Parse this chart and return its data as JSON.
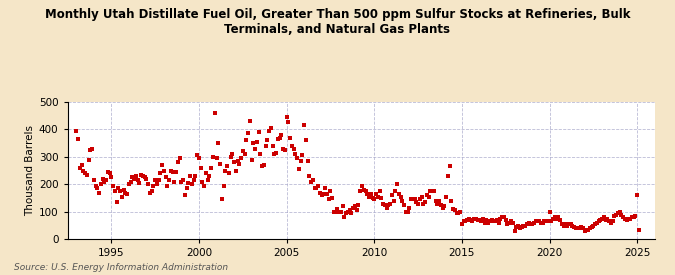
{
  "title": "Monthly Utah Distillate Fuel Oil, Greater Than 500 ppm Sulfur Stocks at Refineries, Bulk\nTerminals, and Natural Gas Plants",
  "ylabel": "Thousand Barrels",
  "source": "Source: U.S. Energy Information Administration",
  "marker_color": "#CC0000",
  "background_color": "#F5E6C8",
  "plot_bg_color": "#FFFFFF",
  "grid_color": "#AAAACC",
  "ylim": [
    0,
    500
  ],
  "yticks": [
    0,
    100,
    200,
    300,
    400,
    500
  ],
  "xlim": [
    1992.5,
    2026.0
  ],
  "xticks": [
    1995,
    2000,
    2005,
    2010,
    2015,
    2020,
    2025
  ],
  "data": [
    [
      1993.0,
      395
    ],
    [
      1993.1,
      365
    ],
    [
      1993.2,
      260
    ],
    [
      1993.3,
      270
    ],
    [
      1993.4,
      250
    ],
    [
      1993.5,
      240
    ],
    [
      1993.6,
      235
    ],
    [
      1993.7,
      290
    ],
    [
      1993.8,
      325
    ],
    [
      1993.9,
      330
    ],
    [
      1994.0,
      215
    ],
    [
      1994.1,
      195
    ],
    [
      1994.2,
      185
    ],
    [
      1994.3,
      170
    ],
    [
      1994.4,
      200
    ],
    [
      1994.5,
      220
    ],
    [
      1994.6,
      210
    ],
    [
      1994.7,
      215
    ],
    [
      1994.8,
      245
    ],
    [
      1994.9,
      240
    ],
    [
      1995.0,
      225
    ],
    [
      1995.1,
      195
    ],
    [
      1995.2,
      175
    ],
    [
      1995.3,
      135
    ],
    [
      1995.4,
      185
    ],
    [
      1995.5,
      175
    ],
    [
      1995.6,
      155
    ],
    [
      1995.7,
      180
    ],
    [
      1995.8,
      170
    ],
    [
      1995.9,
      165
    ],
    [
      1996.0,
      200
    ],
    [
      1996.1,
      210
    ],
    [
      1996.2,
      225
    ],
    [
      1996.3,
      220
    ],
    [
      1996.4,
      230
    ],
    [
      1996.5,
      215
    ],
    [
      1996.6,
      205
    ],
    [
      1996.7,
      235
    ],
    [
      1996.8,
      230
    ],
    [
      1996.9,
      225
    ],
    [
      1997.0,
      220
    ],
    [
      1997.1,
      200
    ],
    [
      1997.2,
      170
    ],
    [
      1997.3,
      175
    ],
    [
      1997.4,
      195
    ],
    [
      1997.5,
      215
    ],
    [
      1997.6,
      200
    ],
    [
      1997.7,
      215
    ],
    [
      1997.8,
      240
    ],
    [
      1997.9,
      270
    ],
    [
      1998.0,
      250
    ],
    [
      1998.1,
      225
    ],
    [
      1998.2,
      195
    ],
    [
      1998.3,
      215
    ],
    [
      1998.4,
      250
    ],
    [
      1998.5,
      245
    ],
    [
      1998.6,
      210
    ],
    [
      1998.7,
      245
    ],
    [
      1998.8,
      280
    ],
    [
      1998.9,
      295
    ],
    [
      1999.0,
      210
    ],
    [
      1999.1,
      215
    ],
    [
      1999.2,
      160
    ],
    [
      1999.3,
      185
    ],
    [
      1999.4,
      205
    ],
    [
      1999.5,
      230
    ],
    [
      1999.6,
      200
    ],
    [
      1999.7,
      215
    ],
    [
      1999.8,
      230
    ],
    [
      1999.9,
      305
    ],
    [
      2000.0,
      295
    ],
    [
      2000.1,
      260
    ],
    [
      2000.2,
      210
    ],
    [
      2000.3,
      195
    ],
    [
      2000.4,
      240
    ],
    [
      2000.5,
      215
    ],
    [
      2000.6,
      230
    ],
    [
      2000.7,
      260
    ],
    [
      2000.8,
      300
    ],
    [
      2000.9,
      460
    ],
    [
      2001.0,
      295
    ],
    [
      2001.1,
      350
    ],
    [
      2001.2,
      275
    ],
    [
      2001.3,
      145
    ],
    [
      2001.4,
      195
    ],
    [
      2001.5,
      250
    ],
    [
      2001.6,
      265
    ],
    [
      2001.7,
      240
    ],
    [
      2001.8,
      300
    ],
    [
      2001.9,
      310
    ],
    [
      2002.0,
      280
    ],
    [
      2002.1,
      250
    ],
    [
      2002.2,
      285
    ],
    [
      2002.3,
      275
    ],
    [
      2002.4,
      295
    ],
    [
      2002.5,
      320
    ],
    [
      2002.6,
      310
    ],
    [
      2002.7,
      360
    ],
    [
      2002.8,
      385
    ],
    [
      2002.9,
      430
    ],
    [
      2003.0,
      290
    ],
    [
      2003.1,
      350
    ],
    [
      2003.2,
      330
    ],
    [
      2003.3,
      355
    ],
    [
      2003.4,
      390
    ],
    [
      2003.5,
      310
    ],
    [
      2003.6,
      265
    ],
    [
      2003.7,
      270
    ],
    [
      2003.8,
      340
    ],
    [
      2003.9,
      360
    ],
    [
      2004.0,
      395
    ],
    [
      2004.1,
      405
    ],
    [
      2004.2,
      340
    ],
    [
      2004.3,
      310
    ],
    [
      2004.4,
      315
    ],
    [
      2004.5,
      365
    ],
    [
      2004.6,
      370
    ],
    [
      2004.7,
      380
    ],
    [
      2004.8,
      330
    ],
    [
      2004.9,
      325
    ],
    [
      2005.0,
      445
    ],
    [
      2005.1,
      425
    ],
    [
      2005.2,
      370
    ],
    [
      2005.3,
      340
    ],
    [
      2005.4,
      330
    ],
    [
      2005.5,
      310
    ],
    [
      2005.6,
      295
    ],
    [
      2005.7,
      255
    ],
    [
      2005.8,
      285
    ],
    [
      2005.9,
      305
    ],
    [
      2006.0,
      415
    ],
    [
      2006.1,
      360
    ],
    [
      2006.2,
      285
    ],
    [
      2006.3,
      230
    ],
    [
      2006.4,
      210
    ],
    [
      2006.5,
      215
    ],
    [
      2006.6,
      185
    ],
    [
      2006.7,
      185
    ],
    [
      2006.8,
      195
    ],
    [
      2006.9,
      170
    ],
    [
      2007.0,
      160
    ],
    [
      2007.1,
      165
    ],
    [
      2007.2,
      185
    ],
    [
      2007.3,
      165
    ],
    [
      2007.4,
      145
    ],
    [
      2007.5,
      175
    ],
    [
      2007.6,
      150
    ],
    [
      2007.7,
      100
    ],
    [
      2007.8,
      100
    ],
    [
      2007.9,
      110
    ],
    [
      2008.0,
      100
    ],
    [
      2008.1,
      100
    ],
    [
      2008.2,
      120
    ],
    [
      2008.3,
      80
    ],
    [
      2008.4,
      95
    ],
    [
      2008.5,
      100
    ],
    [
      2008.6,
      105
    ],
    [
      2008.7,
      95
    ],
    [
      2008.8,
      115
    ],
    [
      2008.9,
      120
    ],
    [
      2009.0,
      105
    ],
    [
      2009.1,
      125
    ],
    [
      2009.2,
      175
    ],
    [
      2009.3,
      195
    ],
    [
      2009.4,
      180
    ],
    [
      2009.5,
      175
    ],
    [
      2009.6,
      165
    ],
    [
      2009.7,
      155
    ],
    [
      2009.8,
      165
    ],
    [
      2009.9,
      150
    ],
    [
      2010.0,
      145
    ],
    [
      2010.1,
      165
    ],
    [
      2010.2,
      155
    ],
    [
      2010.3,
      175
    ],
    [
      2010.4,
      150
    ],
    [
      2010.5,
      130
    ],
    [
      2010.6,
      125
    ],
    [
      2010.7,
      115
    ],
    [
      2010.8,
      125
    ],
    [
      2010.9,
      130
    ],
    [
      2011.0,
      160
    ],
    [
      2011.1,
      140
    ],
    [
      2011.2,
      175
    ],
    [
      2011.3,
      200
    ],
    [
      2011.4,
      165
    ],
    [
      2011.5,
      155
    ],
    [
      2011.6,
      140
    ],
    [
      2011.7,
      125
    ],
    [
      2011.8,
      100
    ],
    [
      2011.9,
      100
    ],
    [
      2012.0,
      115
    ],
    [
      2012.1,
      145
    ],
    [
      2012.2,
      145
    ],
    [
      2012.3,
      145
    ],
    [
      2012.4,
      135
    ],
    [
      2012.5,
      130
    ],
    [
      2012.6,
      145
    ],
    [
      2012.7,
      155
    ],
    [
      2012.8,
      130
    ],
    [
      2012.9,
      135
    ],
    [
      2013.0,
      160
    ],
    [
      2013.1,
      155
    ],
    [
      2013.2,
      175
    ],
    [
      2013.3,
      175
    ],
    [
      2013.4,
      175
    ],
    [
      2013.5,
      140
    ],
    [
      2013.6,
      130
    ],
    [
      2013.7,
      140
    ],
    [
      2013.8,
      125
    ],
    [
      2013.9,
      115
    ],
    [
      2014.0,
      120
    ],
    [
      2014.1,
      155
    ],
    [
      2014.2,
      230
    ],
    [
      2014.3,
      265
    ],
    [
      2014.4,
      140
    ],
    [
      2014.5,
      110
    ],
    [
      2014.6,
      105
    ],
    [
      2014.7,
      95
    ],
    [
      2014.8,
      95
    ],
    [
      2014.9,
      100
    ],
    [
      2015.0,
      55
    ],
    [
      2015.1,
      65
    ],
    [
      2015.2,
      65
    ],
    [
      2015.3,
      70
    ],
    [
      2015.4,
      75
    ],
    [
      2015.5,
      70
    ],
    [
      2015.6,
      65
    ],
    [
      2015.7,
      75
    ],
    [
      2015.8,
      75
    ],
    [
      2015.9,
      70
    ],
    [
      2016.0,
      70
    ],
    [
      2016.1,
      65
    ],
    [
      2016.2,
      75
    ],
    [
      2016.3,
      60
    ],
    [
      2016.4,
      70
    ],
    [
      2016.5,
      60
    ],
    [
      2016.6,
      65
    ],
    [
      2016.7,
      70
    ],
    [
      2016.8,
      65
    ],
    [
      2016.9,
      65
    ],
    [
      2017.0,
      70
    ],
    [
      2017.1,
      60
    ],
    [
      2017.2,
      75
    ],
    [
      2017.3,
      80
    ],
    [
      2017.4,
      80
    ],
    [
      2017.5,
      70
    ],
    [
      2017.6,
      55
    ],
    [
      2017.7,
      60
    ],
    [
      2017.8,
      65
    ],
    [
      2017.9,
      60
    ],
    [
      2018.0,
      30
    ],
    [
      2018.1,
      45
    ],
    [
      2018.2,
      50
    ],
    [
      2018.3,
      40
    ],
    [
      2018.4,
      45
    ],
    [
      2018.5,
      50
    ],
    [
      2018.6,
      50
    ],
    [
      2018.7,
      55
    ],
    [
      2018.8,
      60
    ],
    [
      2018.9,
      55
    ],
    [
      2019.0,
      55
    ],
    [
      2019.1,
      60
    ],
    [
      2019.2,
      65
    ],
    [
      2019.3,
      65
    ],
    [
      2019.4,
      65
    ],
    [
      2019.5,
      60
    ],
    [
      2019.6,
      60
    ],
    [
      2019.7,
      65
    ],
    [
      2019.8,
      65
    ],
    [
      2019.9,
      65
    ],
    [
      2020.0,
      100
    ],
    [
      2020.1,
      65
    ],
    [
      2020.2,
      75
    ],
    [
      2020.3,
      80
    ],
    [
      2020.4,
      75
    ],
    [
      2020.5,
      80
    ],
    [
      2020.6,
      70
    ],
    [
      2020.7,
      55
    ],
    [
      2020.8,
      50
    ],
    [
      2020.9,
      55
    ],
    [
      2021.0,
      50
    ],
    [
      2021.1,
      55
    ],
    [
      2021.2,
      55
    ],
    [
      2021.3,
      50
    ],
    [
      2021.4,
      45
    ],
    [
      2021.5,
      40
    ],
    [
      2021.6,
      40
    ],
    [
      2021.7,
      40
    ],
    [
      2021.8,
      45
    ],
    [
      2021.9,
      40
    ],
    [
      2022.0,
      30
    ],
    [
      2022.1,
      35
    ],
    [
      2022.2,
      35
    ],
    [
      2022.3,
      40
    ],
    [
      2022.4,
      45
    ],
    [
      2022.5,
      50
    ],
    [
      2022.6,
      55
    ],
    [
      2022.7,
      60
    ],
    [
      2022.8,
      65
    ],
    [
      2022.9,
      70
    ],
    [
      2023.0,
      75
    ],
    [
      2023.1,
      80
    ],
    [
      2023.2,
      70
    ],
    [
      2023.3,
      75
    ],
    [
      2023.4,
      65
    ],
    [
      2023.5,
      60
    ],
    [
      2023.6,
      65
    ],
    [
      2023.7,
      85
    ],
    [
      2023.8,
      90
    ],
    [
      2023.9,
      95
    ],
    [
      2024.0,
      100
    ],
    [
      2024.1,
      90
    ],
    [
      2024.2,
      80
    ],
    [
      2024.3,
      75
    ],
    [
      2024.4,
      70
    ],
    [
      2024.5,
      75
    ],
    [
      2024.6,
      75
    ],
    [
      2024.7,
      80
    ],
    [
      2024.8,
      80
    ],
    [
      2024.9,
      85
    ],
    [
      2025.0,
      160
    ],
    [
      2025.1,
      35
    ]
  ]
}
